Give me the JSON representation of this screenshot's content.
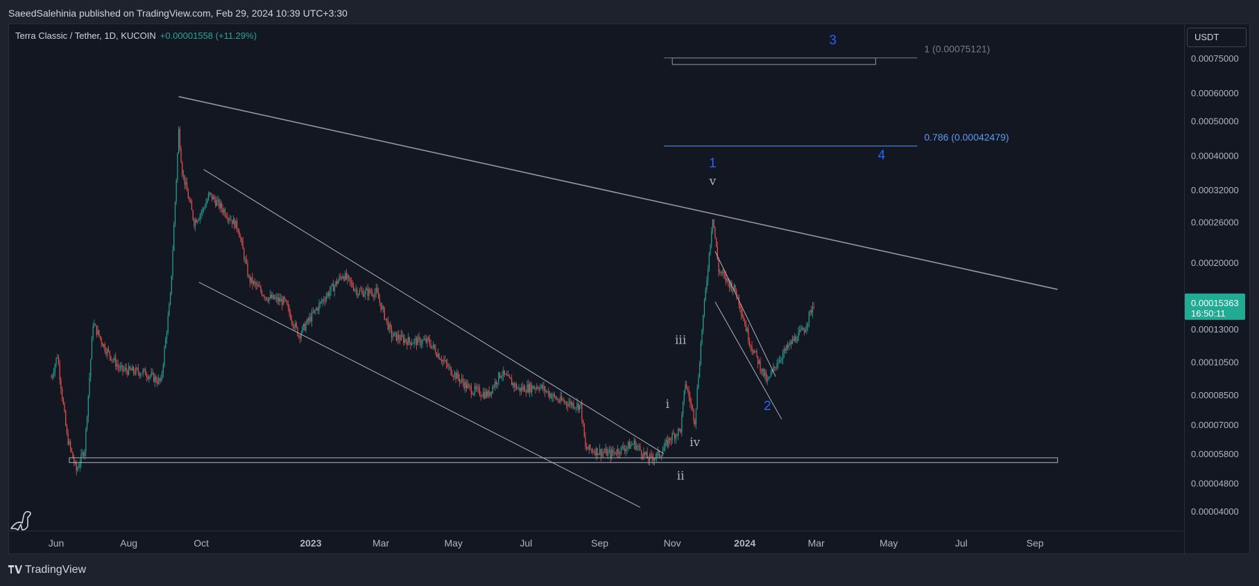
{
  "header": {
    "publisher_line": "SaeedSalehinia published on TradingView.com, Feb 29, 2024 10:39 UTC+3:30"
  },
  "legend": {
    "symbol": "Terra Classic / Tether, 1D, KUCOIN",
    "change": "+0.00001558 (+11.29%)"
  },
  "price_scale": {
    "currency": "USDT"
  },
  "last_price": {
    "value": "0.00015363",
    "countdown": "16:50:11"
  },
  "footer": {
    "brand": "TradingView"
  },
  "colors": {
    "up": "#26a69a",
    "down": "#ef5350",
    "background": "#131722",
    "fib": "#5b9cf6",
    "wave_blue": "#2962ff"
  },
  "chart_data": {
    "type": "candlestick",
    "symbol": "Terra Classic / Tether",
    "interval": "1D",
    "exchange": "KUCOIN",
    "y_scale": "log",
    "y_ticks": [
      "0.00075000",
      "0.00060000",
      "0.00050000",
      "0.00040000",
      "0.00032000",
      "0.00026000",
      "0.00020000",
      "0.00016000",
      "0.00013000",
      "0.00010500",
      "0.00008500",
      "0.00007000",
      "0.00005800",
      "0.00004800",
      "0.00004000"
    ],
    "x_ticks": [
      {
        "label": "Jun",
        "bold": false
      },
      {
        "label": "Aug",
        "bold": false
      },
      {
        "label": "Oct",
        "bold": false
      },
      {
        "label": "2023",
        "bold": true
      },
      {
        "label": "Mar",
        "bold": false
      },
      {
        "label": "May",
        "bold": false
      },
      {
        "label": "Jul",
        "bold": false
      },
      {
        "label": "Sep",
        "bold": false
      },
      {
        "label": "Nov",
        "bold": false
      },
      {
        "label": "2024",
        "bold": true
      },
      {
        "label": "Mar",
        "bold": false
      },
      {
        "label": "May",
        "bold": false
      },
      {
        "label": "Jul",
        "bold": false
      },
      {
        "label": "Sep",
        "bold": false
      }
    ],
    "price_path": [
      [
        "2022-05-28",
        9.5e-05
      ],
      [
        "2022-06-02",
        0.00011
      ],
      [
        "2022-06-10",
        6.5e-05
      ],
      [
        "2022-06-18",
        5.2e-05
      ],
      [
        "2022-06-25",
        6e-05
      ],
      [
        "2022-07-02",
        0.000135
      ],
      [
        "2022-07-12",
        0.000115
      ],
      [
        "2022-07-25",
        0.0001
      ],
      [
        "2022-08-15",
        9.8e-05
      ],
      [
        "2022-08-28",
        9.2e-05
      ],
      [
        "2022-09-05",
        0.00016
      ],
      [
        "2022-09-12",
        0.00047
      ],
      [
        "2022-09-15",
        0.00036
      ],
      [
        "2022-09-25",
        0.00026
      ],
      [
        "2022-10-02",
        0.00028
      ],
      [
        "2022-10-08",
        0.00031
      ],
      [
        "2022-10-20",
        0.00028
      ],
      [
        "2022-11-01",
        0.00025
      ],
      [
        "2022-11-10",
        0.00018
      ],
      [
        "2022-11-25",
        0.00016
      ],
      [
        "2022-12-10",
        0.000155
      ],
      [
        "2022-12-22",
        0.000125
      ],
      [
        "2023-01-10",
        0.000155
      ],
      [
        "2023-01-28",
        0.000185
      ],
      [
        "2023-02-10",
        0.000165
      ],
      [
        "2023-02-25",
        0.000165
      ],
      [
        "2023-03-10",
        0.000125
      ],
      [
        "2023-03-25",
        0.00012
      ],
      [
        "2023-04-10",
        0.00012
      ],
      [
        "2023-04-28",
        0.0001
      ],
      [
        "2023-05-15",
        8.8e-05
      ],
      [
        "2023-05-30",
        8.5e-05
      ],
      [
        "2023-06-10",
        9.8e-05
      ],
      [
        "2023-06-25",
        8.8e-05
      ],
      [
        "2023-07-12",
        9e-05
      ],
      [
        "2023-07-28",
        8.2e-05
      ],
      [
        "2023-08-16",
        7.9e-05
      ],
      [
        "2023-08-20",
        6e-05
      ],
      [
        "2023-09-10",
        5.8e-05
      ],
      [
        "2023-09-30",
        6.2e-05
      ],
      [
        "2023-10-12",
        5.6e-05
      ],
      [
        "2023-10-22",
        5.8e-05
      ],
      [
        "2023-10-30",
        6.4e-05
      ],
      [
        "2023-11-08",
        6.8e-05
      ],
      [
        "2023-11-12",
        9.2e-05
      ],
      [
        "2023-11-20",
        7.2e-05
      ],
      [
        "2023-11-26",
        0.00013
      ],
      [
        "2023-12-05",
        0.00027
      ],
      [
        "2023-12-10",
        0.00019
      ],
      [
        "2023-12-25",
        0.000165
      ],
      [
        "2024-01-05",
        0.00012
      ],
      [
        "2024-01-20",
        9.2e-05
      ],
      [
        "2024-01-28",
        0.000105
      ],
      [
        "2024-02-10",
        0.00012
      ],
      [
        "2024-02-20",
        0.00013
      ],
      [
        "2024-02-28",
        0.00015363
      ]
    ],
    "annotations": {
      "fib_levels": [
        {
          "label": "1 (0.00075121)",
          "price": 0.00075121
        },
        {
          "label": "0.786 (0.00042479)",
          "price": 0.00042479
        }
      ],
      "wave_labels_blue": [
        {
          "text": "1",
          "date": "2023-12-05",
          "price": 0.00037
        },
        {
          "text": "2",
          "date": "2024-01-20",
          "price": 7.7e-05
        },
        {
          "text": "3",
          "date": "2024-03-15",
          "price": 0.00082
        },
        {
          "text": "4",
          "date": "2024-04-25",
          "price": 0.00039
        }
      ],
      "wave_labels_sub": [
        {
          "text": "i",
          "date": "2023-10-28",
          "price": 7.8e-05
        },
        {
          "text": "ii",
          "date": "2023-11-08",
          "price": 4.9e-05
        },
        {
          "text": "iii",
          "date": "2023-11-08",
          "price": 0.000118
        },
        {
          "text": "iv",
          "date": "2023-11-20",
          "price": 6.1e-05
        },
        {
          "text": "v",
          "date": "2023-12-05",
          "price": 0.00033
        }
      ],
      "trendlines": [
        {
          "from": [
            "2022-09-12",
            0.000585
          ],
          "to": [
            "2024-09-20",
            0.000168
          ]
        },
        {
          "from": [
            "2022-10-03",
            0.000365
          ],
          "to": [
            "2023-10-25",
            5.8e-05
          ]
        },
        {
          "from": [
            "2022-09-29",
            0.000176
          ],
          "to": [
            "2023-10-05",
            4.1e-05
          ]
        },
        {
          "from": [
            "2023-12-07",
            0.000215
          ],
          "to": [
            "2024-01-27",
            9.55e-05
          ]
        },
        {
          "from": [
            "2023-12-07",
            0.000155
          ],
          "to": [
            "2024-02-01",
            7.25e-05
          ]
        }
      ],
      "support_zone": {
        "from": "2022-06-12",
        "to": "2024-09-20",
        "price_top": 5.65e-05,
        "price_bottom": 5.48e-05
      },
      "target_box": {
        "from": "2023-11-01",
        "to": "2024-04-20",
        "price_top": 0.00075121,
        "price_bottom": 0.00072
      }
    }
  }
}
